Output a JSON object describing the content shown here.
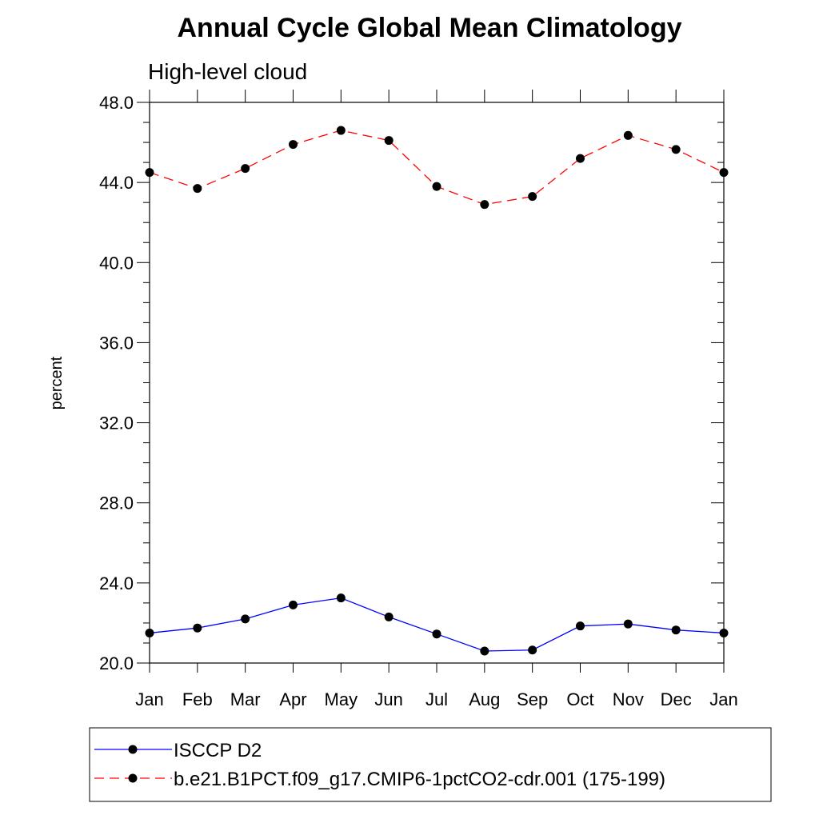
{
  "chart_data": {
    "type": "line",
    "title": "Annual Cycle Global Mean Climatology",
    "subtitle": "High-level cloud",
    "ylabel": "percent",
    "categories": [
      "Jan",
      "Feb",
      "Mar",
      "Apr",
      "May",
      "Jun",
      "Jul",
      "Aug",
      "Sep",
      "Oct",
      "Nov",
      "Dec",
      "Jan"
    ],
    "ylim": [
      20.0,
      48.0
    ],
    "yticks": [
      "20.0",
      "24.0",
      "28.0",
      "32.0",
      "36.0",
      "40.0",
      "44.0",
      "48.0"
    ],
    "series": [
      {
        "name": "ISCCP D2",
        "color": "#0000ff",
        "style": "solid",
        "values": [
          21.5,
          21.75,
          22.2,
          22.9,
          23.25,
          22.3,
          21.45,
          20.6,
          20.65,
          21.85,
          21.95,
          21.65,
          21.5
        ]
      },
      {
        "name": "b.e21.B1PCT.f09_g17.CMIP6-1pctCO2-cdr.001 (175-199)",
        "color": "#ff0000",
        "style": "dashed",
        "values": [
          44.5,
          43.7,
          44.7,
          45.9,
          46.6,
          46.1,
          43.8,
          42.9,
          43.3,
          45.2,
          46.35,
          45.65,
          44.5
        ]
      }
    ],
    "grid": false,
    "legend_position": "bottom"
  }
}
